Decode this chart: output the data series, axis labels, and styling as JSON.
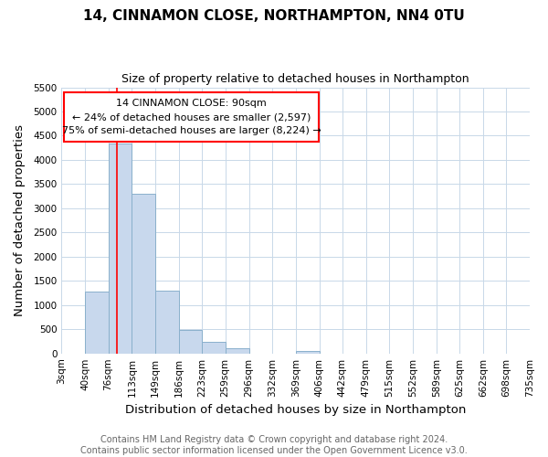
{
  "title": "14, CINNAMON CLOSE, NORTHAMPTON, NN4 0TU",
  "subtitle": "Size of property relative to detached houses in Northampton",
  "xlabel": "Distribution of detached houses by size in Northampton",
  "ylabel": "Number of detached properties",
  "bar_color": "#c8d8ed",
  "bar_edge_color": "#8ab0cc",
  "bins_left": [
    3,
    40,
    76,
    113,
    149,
    186,
    223,
    259,
    296,
    332,
    369,
    406,
    442,
    479,
    515,
    552,
    589,
    625,
    662,
    698
  ],
  "bin_width": 37,
  "bar_heights": [
    0,
    1280,
    4340,
    3300,
    1290,
    490,
    240,
    100,
    0,
    0,
    60,
    0,
    0,
    0,
    0,
    0,
    0,
    0,
    0,
    0
  ],
  "x_tick_labels": [
    "3sqm",
    "40sqm",
    "76sqm",
    "113sqm",
    "149sqm",
    "186sqm",
    "223sqm",
    "259sqm",
    "296sqm",
    "332sqm",
    "369sqm",
    "406sqm",
    "442sqm",
    "479sqm",
    "515sqm",
    "552sqm",
    "589sqm",
    "625sqm",
    "662sqm",
    "698sqm",
    "735sqm"
  ],
  "x_tick_positions": [
    3,
    40,
    76,
    113,
    149,
    186,
    223,
    259,
    296,
    332,
    369,
    406,
    442,
    479,
    515,
    552,
    589,
    625,
    662,
    698,
    735
  ],
  "ylim": [
    0,
    5500
  ],
  "xlim": [
    3,
    735
  ],
  "red_line_x": 90,
  "annotation_line1": "14 CINNAMON CLOSE: 90sqm",
  "annotation_line2": "← 24% of detached houses are smaller (2,597)",
  "annotation_line3": "75% of semi-detached houses are larger (8,224) →",
  "footer_text": "Contains HM Land Registry data © Crown copyright and database right 2024.\nContains public sector information licensed under the Open Government Licence v3.0.",
  "background_color": "#ffffff",
  "plot_bg_color": "#ffffff",
  "grid_color": "#c8d8e8",
  "title_fontsize": 11,
  "subtitle_fontsize": 9,
  "axis_label_fontsize": 9.5,
  "tick_fontsize": 7.5,
  "annotation_fontsize": 8,
  "footer_fontsize": 7
}
